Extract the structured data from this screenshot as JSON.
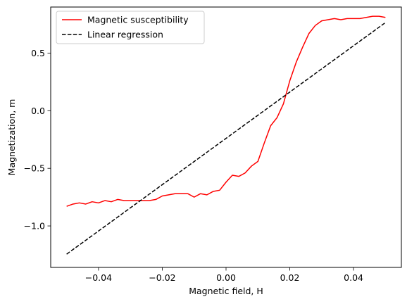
{
  "chart_data": {
    "type": "line",
    "title": "",
    "xlabel": "Magnetic field, H",
    "ylabel": "Magnetization, m",
    "xlim": [
      -0.055,
      0.055
    ],
    "ylim": [
      -1.36,
      0.9
    ],
    "xticks": [
      -0.04,
      -0.02,
      0.0,
      0.02,
      0.04
    ],
    "xtick_labels": [
      "−0.04",
      "−0.02",
      "0.00",
      "0.02",
      "0.04"
    ],
    "yticks": [
      -1.0,
      -0.5,
      0.0,
      0.5
    ],
    "ytick_labels": [
      "−1.0",
      "−0.5",
      "0.0",
      "0.5"
    ],
    "grid": false,
    "legend_position": "top-left",
    "series": [
      {
        "name": "Magnetic susceptibility",
        "color": "#ff0000",
        "style": "solid",
        "x": [
          -0.05,
          -0.048,
          -0.046,
          -0.044,
          -0.042,
          -0.04,
          -0.038,
          -0.036,
          -0.034,
          -0.032,
          -0.03,
          -0.028,
          -0.026,
          -0.024,
          -0.022,
          -0.02,
          -0.018,
          -0.016,
          -0.014,
          -0.012,
          -0.01,
          -0.008,
          -0.006,
          -0.004,
          -0.002,
          0.0,
          0.002,
          0.004,
          0.006,
          0.008,
          0.01,
          0.012,
          0.014,
          0.016,
          0.018,
          0.02,
          0.022,
          0.024,
          0.026,
          0.028,
          0.03,
          0.032,
          0.034,
          0.036,
          0.038,
          0.04,
          0.042,
          0.044,
          0.046,
          0.048,
          0.05
        ],
        "y": [
          -0.83,
          -0.81,
          -0.8,
          -0.81,
          -0.79,
          -0.8,
          -0.78,
          -0.79,
          -0.77,
          -0.78,
          -0.78,
          -0.78,
          -0.78,
          -0.78,
          -0.77,
          -0.74,
          -0.73,
          -0.72,
          -0.72,
          -0.72,
          -0.75,
          -0.72,
          -0.73,
          -0.7,
          -0.69,
          -0.62,
          -0.56,
          -0.57,
          -0.54,
          -0.48,
          -0.44,
          -0.28,
          -0.13,
          -0.06,
          0.06,
          0.26,
          0.42,
          0.55,
          0.67,
          0.74,
          0.78,
          0.79,
          0.8,
          0.79,
          0.8,
          0.8,
          0.8,
          0.81,
          0.82,
          0.82,
          0.81
        ]
      },
      {
        "name": "Linear regression",
        "color": "#000000",
        "style": "dashed",
        "x": [
          -0.05,
          0.05
        ],
        "y": [
          -1.245,
          0.765
        ]
      }
    ]
  }
}
